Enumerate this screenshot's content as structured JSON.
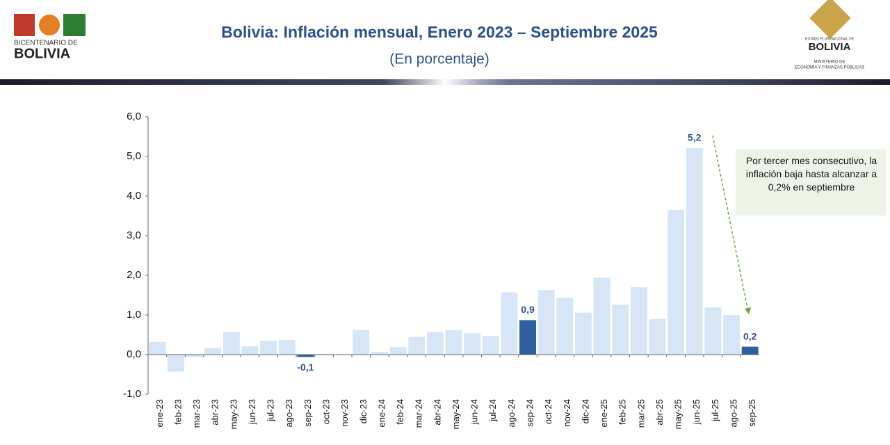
{
  "header": {
    "title": "Bolivia: Inflación mensual, Enero 2023 – Septiembre 2025",
    "subtitle": "(En porcentaje)",
    "left_logo_line1": "BICENTENARIO DE",
    "left_logo_line2": "BOLIVIA",
    "right_logo_line1": "ESTADO PLURINACIONAL DE",
    "right_logo_line2": "BOLIVIA",
    "right_logo_line3": "MINISTERIO DE",
    "right_logo_line4": "ECONOMÍA Y FINANZAS PÚBLICAS"
  },
  "chart_data": {
    "type": "bar",
    "annotation": "Por tercer mes consecutivo, la inflación baja hasta alcanzar a 0,2% en septiembre",
    "categories": [
      "ene-23",
      "feb-23",
      "mar-23",
      "abr-23",
      "may-23",
      "jun-23",
      "jul-23",
      "ago-23",
      "sep-23",
      "oct-23",
      "nov-23",
      "dic-23",
      "ene-24",
      "feb-24",
      "mar-24",
      "abr-24",
      "may-24",
      "jun-24",
      "jul-24",
      "ago-24",
      "sep-24",
      "oct-24",
      "nov-24",
      "dic-24",
      "ene-25",
      "feb-25",
      "mar-25",
      "abr-25",
      "may-25",
      "jun-25",
      "jul-25",
      "ago-25",
      "sep-25"
    ],
    "values": [
      0.32,
      -0.43,
      -0.06,
      0.17,
      0.57,
      0.21,
      0.35,
      0.37,
      -0.06,
      0.02,
      0.01,
      0.62,
      0.07,
      0.19,
      0.45,
      0.57,
      0.62,
      0.54,
      0.47,
      1.57,
      0.87,
      1.63,
      1.43,
      1.06,
      1.94,
      1.26,
      1.7,
      0.9,
      3.65,
      5.21,
      1.19,
      1.0,
      0.2
    ],
    "value_labels": [
      null,
      null,
      null,
      null,
      null,
      null,
      null,
      null,
      "-0,1",
      null,
      null,
      null,
      null,
      null,
      null,
      null,
      null,
      null,
      null,
      null,
      "0,9",
      null,
      null,
      null,
      null,
      null,
      null,
      null,
      null,
      "5,2",
      null,
      null,
      "0,2"
    ],
    "colors": [
      "#d6e6f6",
      "#d6e6f6",
      "#d6e6f6",
      "#d6e6f6",
      "#d6e6f6",
      "#d6e6f6",
      "#d6e6f6",
      "#d6e6f6",
      "#2f5f9e",
      "#d6e6f6",
      "#d6e6f6",
      "#d6e6f6",
      "#d6e6f6",
      "#d6e6f6",
      "#d6e6f6",
      "#d6e6f6",
      "#d6e6f6",
      "#d6e6f6",
      "#d6e6f6",
      "#d6e6f6",
      "#2f5f9e",
      "#d6e6f6",
      "#d6e6f6",
      "#d6e6f6",
      "#d6e6f6",
      "#d6e6f6",
      "#d6e6f6",
      "#d6e6f6",
      "#d6e6f6",
      "#d6e6f6",
      "#d6e6f6",
      "#d6e6f6",
      "#2f5f9e"
    ],
    "ylim": [
      -1,
      6
    ],
    "yticks": [
      {
        "value": -1,
        "label": "-1,0"
      },
      {
        "value": 0,
        "label": "0,0"
      },
      {
        "value": 1,
        "label": "1,0"
      },
      {
        "value": 2,
        "label": "2,0"
      },
      {
        "value": 3,
        "label": "3,0"
      },
      {
        "value": 4,
        "label": "4,0"
      },
      {
        "value": 5,
        "label": "5,0"
      },
      {
        "value": 6,
        "label": "6,0"
      }
    ],
    "grid": false
  }
}
